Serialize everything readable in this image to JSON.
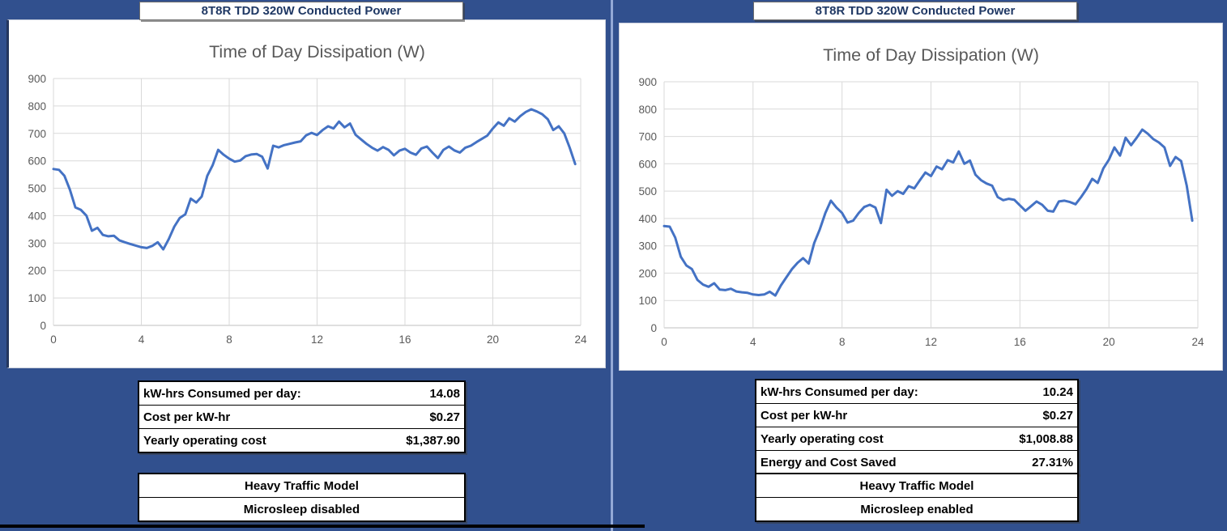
{
  "page": {
    "background_color": "#31508E",
    "accent_line_color": "#94A9D6"
  },
  "panels": [
    {
      "header": "8T8R TDD 320W Conducted Power",
      "stats_table": {
        "rows": [
          {
            "label": "kW-hrs Consumed per day:",
            "value": "14.08"
          },
          {
            "label": "Cost per kW-hr",
            "value": "$0.27"
          },
          {
            "label": "Yearly operating cost",
            "value": "$1,387.90"
          }
        ]
      },
      "model_table": {
        "rows": [
          "Heavy Traffic Model",
          "Microsleep disabled"
        ]
      }
    },
    {
      "header": "8T8R TDD 320W Conducted Power",
      "stats_table": {
        "rows": [
          {
            "label": "kW-hrs Consumed per day:",
            "value": "10.24"
          },
          {
            "label": "Cost per kW-hr",
            "value": "$0.27"
          },
          {
            "label": "Yearly operating cost",
            "value": "$1,008.88"
          },
          {
            "label": "Energy and Cost Saved",
            "value": "27.31%"
          }
        ]
      },
      "model_table": {
        "rows": [
          "Heavy Traffic Model",
          "Microsleep enabled"
        ]
      }
    }
  ],
  "chart_data": [
    {
      "type": "line",
      "title": "Time of Day Dissipation (W)",
      "xlabel": "",
      "ylabel": "",
      "xlim": [
        0,
        24
      ],
      "ylim": [
        0,
        900
      ],
      "xticks": [
        0,
        4,
        8,
        12,
        16,
        20,
        24
      ],
      "ytick_step": 100,
      "grid": true,
      "legend": "none",
      "line_color": "#4472C4",
      "x_start": 0,
      "x_step": 0.25,
      "values": [
        570,
        567,
        545,
        495,
        430,
        421,
        400,
        345,
        356,
        330,
        325,
        327,
        310,
        303,
        297,
        291,
        285,
        282,
        290,
        303,
        277,
        315,
        360,
        392,
        405,
        462,
        448,
        470,
        545,
        585,
        640,
        622,
        608,
        597,
        601,
        617,
        623,
        625,
        615,
        572,
        655,
        649,
        657,
        662,
        667,
        671,
        693,
        702,
        694,
        712,
        726,
        718,
        743,
        722,
        736,
        695,
        678,
        662,
        648,
        637,
        650,
        640,
        620,
        637,
        644,
        630,
        622,
        645,
        652,
        630,
        610,
        640,
        652,
        638,
        630,
        648,
        655,
        668,
        680,
        692,
        718,
        740,
        728,
        755,
        743,
        763,
        778,
        788,
        780,
        770,
        752,
        712,
        726,
        700,
        648,
        588
      ]
    },
    {
      "type": "line",
      "title": "Time of Day Dissipation (W)",
      "xlabel": "",
      "ylabel": "",
      "xlim": [
        0,
        24
      ],
      "ylim": [
        0,
        900
      ],
      "xticks": [
        0,
        4,
        8,
        12,
        16,
        20,
        24
      ],
      "ytick_step": 100,
      "grid": true,
      "legend": "none",
      "line_color": "#4472C4",
      "x_start": 0,
      "x_step": 0.25,
      "values": [
        372,
        370,
        330,
        260,
        228,
        215,
        175,
        158,
        150,
        163,
        140,
        138,
        143,
        133,
        130,
        128,
        122,
        120,
        122,
        132,
        118,
        155,
        185,
        215,
        238,
        255,
        235,
        310,
        360,
        420,
        465,
        440,
        420,
        385,
        392,
        420,
        442,
        450,
        440,
        383,
        505,
        483,
        500,
        490,
        518,
        510,
        540,
        568,
        555,
        590,
        580,
        613,
        605,
        645,
        600,
        612,
        560,
        540,
        528,
        520,
        478,
        467,
        472,
        468,
        448,
        428,
        445,
        462,
        450,
        428,
        425,
        462,
        465,
        460,
        452,
        478,
        508,
        545,
        530,
        583,
        615,
        660,
        630,
        695,
        668,
        695,
        725,
        710,
        690,
        678,
        660,
        592,
        625,
        610,
        520,
        392
      ]
    }
  ]
}
